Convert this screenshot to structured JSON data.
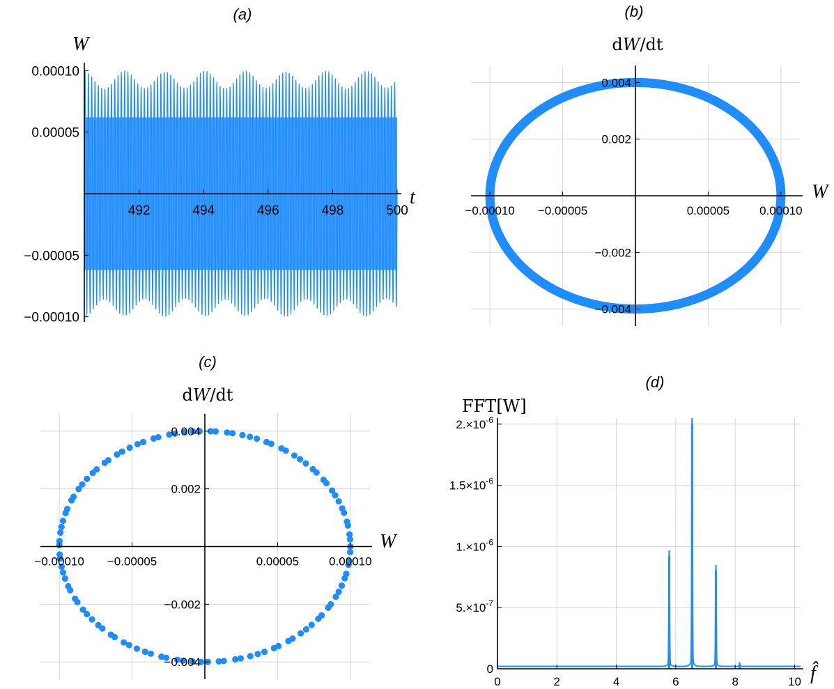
{
  "chart_data": [
    {
      "id": "a",
      "type": "line",
      "title": "(a)",
      "xlabel": "t",
      "ylabel": "W",
      "xlim": [
        490.3,
        500
      ],
      "ylim": [
        -0.000103,
        0.000103
      ],
      "x_ticks": [
        "492",
        "494",
        "496",
        "498",
        "500"
      ],
      "x_tick_values": [
        492,
        494,
        496,
        498,
        500
      ],
      "y_ticks": [
        "0.00010",
        "0.00005",
        "−0.00005",
        "−0.00010"
      ],
      "y_tick_values": [
        0.0001,
        5e-05,
        -5e-05,
        -0.0001
      ],
      "series": [
        {
          "amplitude": 0.0001,
          "color": "#1f8cff",
          "oscillation_periods_shown": 95
        }
      ],
      "grid": false
    },
    {
      "id": "b",
      "type": "line",
      "title": "(b)",
      "xlabel": "W",
      "ylabel": "dW/dt",
      "xlim": [
        -0.000113,
        0.000113
      ],
      "ylim": [
        -0.0046,
        0.0046
      ],
      "x_ticks": [
        "−0.00010",
        "−0.00005",
        "0.00005",
        "0.00010"
      ],
      "x_tick_values": [
        -0.0001,
        -5e-05,
        5e-05,
        0.0001
      ],
      "y_ticks": [
        "0.004",
        "0.002",
        "−0.002",
        "−0.004"
      ],
      "y_tick_values": [
        0.004,
        0.002,
        -0.002,
        -0.004
      ],
      "series": [
        {
          "shape": "ellipse",
          "x_amplitude": 0.0001,
          "y_amplitude": 0.004,
          "color": "#1f8cff"
        }
      ],
      "grid": true
    },
    {
      "id": "c",
      "type": "scatter",
      "title": "(c)",
      "xlabel": "W",
      "ylabel": "dW/dt",
      "xlim": [
        -0.000113,
        0.000113
      ],
      "ylim": [
        -0.0046,
        0.0046
      ],
      "x_ticks": [
        "−0.00010",
        "−0.00005",
        "0.00005",
        "0.00010"
      ],
      "x_tick_values": [
        -0.0001,
        -5e-05,
        5e-05,
        0.0001
      ],
      "y_ticks": [
        "0.004",
        "0.002",
        "−0.002",
        "−0.004"
      ],
      "y_tick_values": [
        0.004,
        0.002,
        -0.002,
        -0.004
      ],
      "series": [
        {
          "shape": "ellipse-points",
          "x_amplitude": 0.0001,
          "y_amplitude": 0.004,
          "point_count": 110,
          "color": "#1f8cff"
        }
      ],
      "grid": true
    },
    {
      "id": "d",
      "type": "line",
      "title": "(d)",
      "xlabel": "f̂",
      "ylabel": "FFT[W]",
      "xlim": [
        0,
        10.2
      ],
      "ylim": [
        0,
        2.05e-06
      ],
      "x_ticks": [
        "0",
        "2",
        "4",
        "6",
        "8",
        "10"
      ],
      "x_tick_values": [
        0,
        2,
        4,
        6,
        8,
        10
      ],
      "y_ticks": [
        {
          "mant": "2.",
          "exp": "-6",
          "value": 2e-06
        },
        {
          "mant": "1.5",
          "exp": "-6",
          "value": 1.5e-06
        },
        {
          "mant": "1.",
          "exp": "-6",
          "value": 1e-06
        },
        {
          "mant": "5.",
          "exp": "-7",
          "value": 5e-07
        },
        {
          "mant": "0",
          "exp": "",
          "value": 0
        }
      ],
      "series": [
        {
          "color": "#1f8cff",
          "baseline": 2e-08,
          "peaks": [
            {
              "x": 5.78,
              "y": 9.2e-07
            },
            {
              "x": 6.55,
              "y": 2e-06
            },
            {
              "x": 7.35,
              "y": 8e-07
            },
            {
              "x": 8.15,
              "y": 2.5e-08
            }
          ]
        }
      ],
      "grid": true
    }
  ]
}
